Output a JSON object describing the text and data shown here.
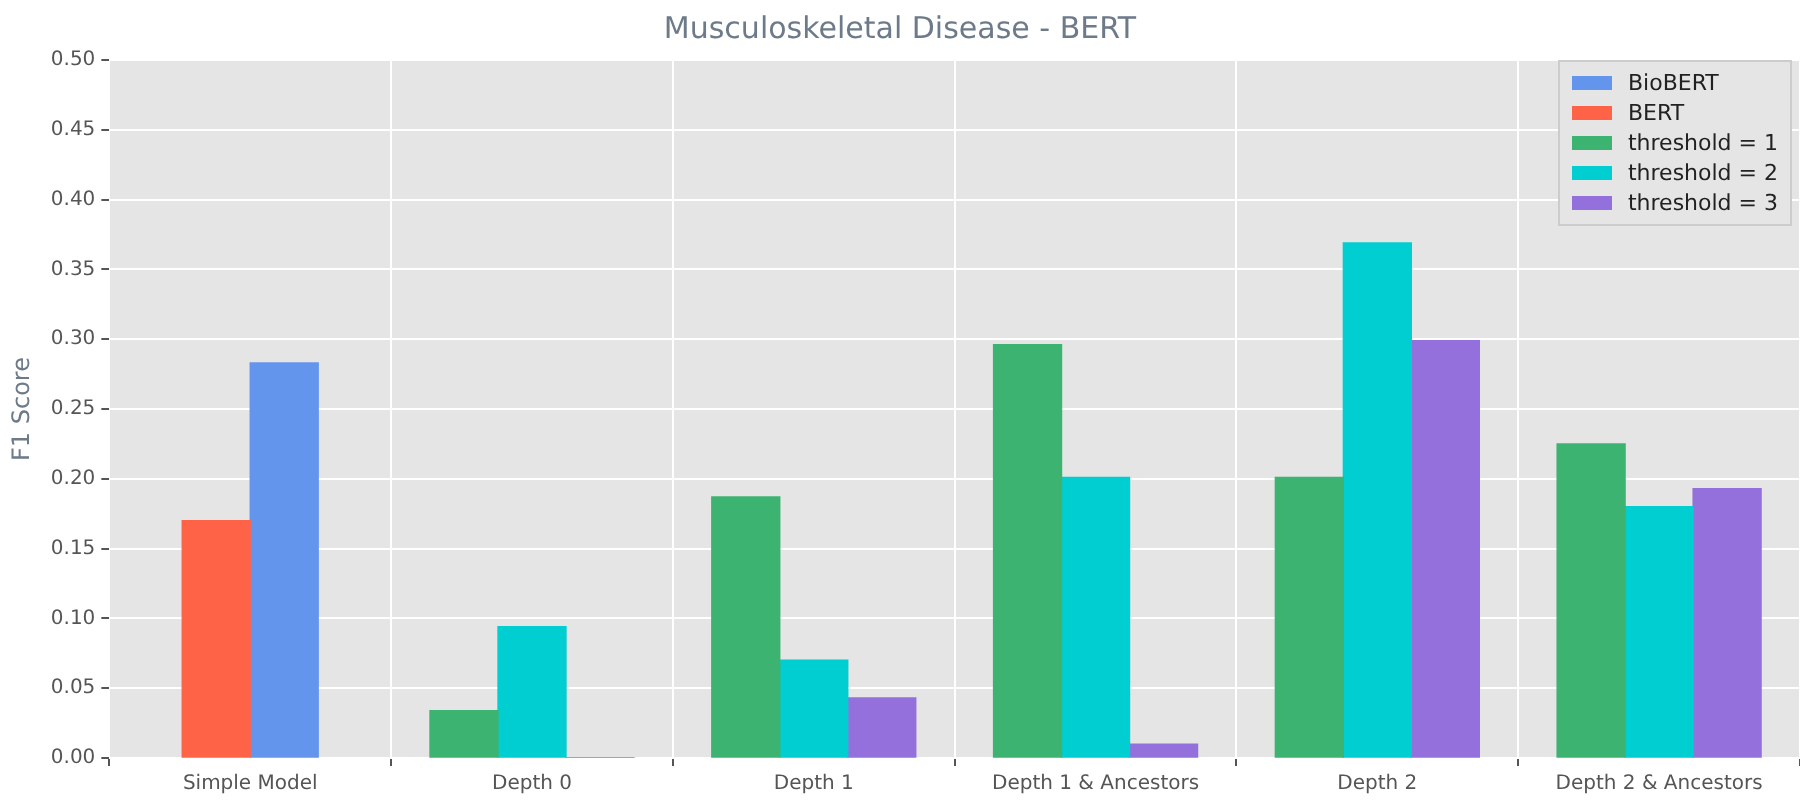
{
  "chart_data": {
    "type": "bar",
    "title": "Musculoskeletal Disease - BERT",
    "ylabel": "F1 Score",
    "categories": [
      "Simple Model",
      "Depth 0",
      "Depth 1",
      "Depth 1 & Ancestors",
      "Depth 2",
      "Depth 2 & Ancestors"
    ],
    "series": [
      {
        "name": "BioBERT",
        "color": "#6495ed",
        "values": [
          0.283,
          null,
          null,
          null,
          null,
          null
        ]
      },
      {
        "name": "BERT",
        "color": "#ff6347",
        "values": [
          0.17,
          null,
          null,
          null,
          null,
          null
        ]
      },
      {
        "name": "threshold = 1",
        "color": "#3cb371",
        "values": [
          null,
          0.034,
          0.187,
          0.296,
          0.201,
          0.225
        ]
      },
      {
        "name": "threshold = 2",
        "color": "#00ced1",
        "values": [
          null,
          0.094,
          0.07,
          0.201,
          0.369,
          0.18
        ]
      },
      {
        "name": "threshold = 3",
        "color": "#9370db",
        "values": [
          null,
          0,
          0.043,
          0.01,
          0.299,
          0.193
        ]
      }
    ],
    "ylim": [
      0,
      0.5
    ],
    "yticks": [
      {
        "value": 0,
        "label": "0.00"
      },
      0.05,
      {
        "value": 0.1,
        "label": "0.10"
      },
      0.15,
      {
        "value": 0.2,
        "label": "0.20"
      },
      0.25,
      {
        "value": 0.3,
        "label": "0.30"
      },
      0.35,
      {
        "value": 0.4,
        "label": "0.40"
      },
      0.45,
      {
        "value": 0.5,
        "label": "0.50"
      }
    ],
    "grid": true,
    "legend": "top right"
  }
}
